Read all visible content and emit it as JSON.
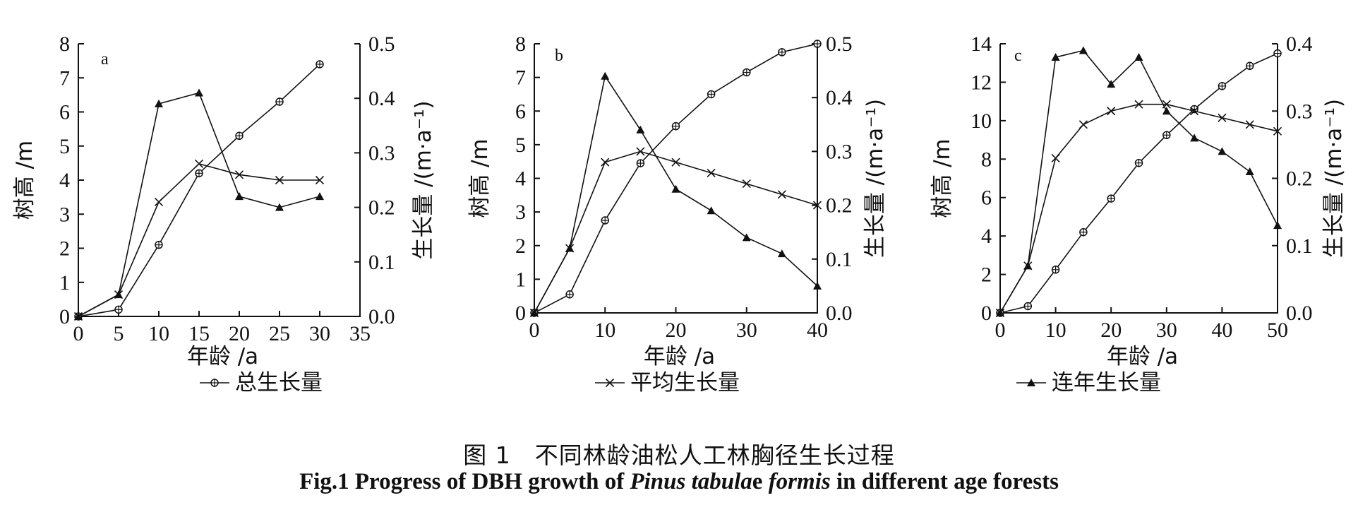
{
  "caption": {
    "cn": "图 1　不同林龄油松人工林胸径生长过程",
    "en_prefix": "Fig.1   Progress of DBH growth of ",
    "en_species_a": "Pinus tabula",
    "en_species_b": "e",
    "en_species_c": " formis",
    "en_suffix": " in different age forests"
  },
  "colors": {
    "ink": "#111111",
    "background": "#ffffff"
  },
  "chart_data": [
    {
      "type": "line",
      "panel_label": "a",
      "xlabel": "年龄 /a",
      "ylabel_left": "树高 /m",
      "ylabel_right": "生长量 /(m·a⁻¹)",
      "xlim": [
        0,
        35
      ],
      "ylim_left": [
        0,
        8
      ],
      "ylim_right": [
        0,
        0.5
      ],
      "xticks": [
        0,
        5,
        10,
        15,
        20,
        25,
        30,
        35
      ],
      "yticks_left": [
        0,
        1,
        2,
        3,
        4,
        5,
        6,
        7,
        8
      ],
      "yticks_right": [
        "0.0",
        "0.1",
        "0.2",
        "0.3",
        "0.4",
        "0.5"
      ],
      "legend": {
        "text": "总生长量",
        "marker": "circle-plus"
      },
      "grid": false,
      "series": [
        {
          "name": "总生长量",
          "marker": "circle-plus",
          "axis": "left",
          "x": [
            0,
            5,
            10,
            15,
            20,
            25,
            30
          ],
          "y": [
            0,
            0.2,
            2.1,
            4.2,
            5.3,
            6.3,
            7.4
          ]
        },
        {
          "name": "平均生长量",
          "marker": "x",
          "axis": "right",
          "x": [
            0,
            5,
            10,
            15,
            20,
            25,
            30
          ],
          "y": [
            0,
            0.04,
            0.21,
            0.28,
            0.26,
            0.25,
            0.25
          ]
        },
        {
          "name": "连年生长量",
          "marker": "triangle",
          "axis": "right",
          "x": [
            0,
            5,
            10,
            15,
            20,
            25,
            30
          ],
          "y": [
            0,
            0.04,
            0.39,
            0.41,
            0.22,
            0.2,
            0.22
          ]
        }
      ]
    },
    {
      "type": "line",
      "panel_label": "b",
      "xlabel": "年龄 /a",
      "ylabel_left": "树高 /m",
      "ylabel_right": "生长量 /(m·a⁻¹)",
      "xlim": [
        0,
        40
      ],
      "ylim_left": [
        0,
        8
      ],
      "ylim_right": [
        0,
        0.5
      ],
      "xticks": [
        0,
        10,
        20,
        30,
        40
      ],
      "yticks_left": [
        0,
        1,
        2,
        3,
        4,
        5,
        6,
        7,
        8
      ],
      "yticks_right": [
        "0.0",
        "0.1",
        "0.2",
        "0.3",
        "0.4",
        "0.5"
      ],
      "legend": {
        "text": "平均生长量",
        "marker": "x"
      },
      "grid": false,
      "series": [
        {
          "name": "总生长量",
          "marker": "circle-plus",
          "axis": "left",
          "x": [
            0,
            5,
            10,
            15,
            20,
            25,
            30,
            35,
            40
          ],
          "y": [
            0,
            0.55,
            2.75,
            4.45,
            5.55,
            6.5,
            7.15,
            7.75,
            8.0
          ]
        },
        {
          "name": "平均生长量",
          "marker": "x",
          "axis": "right",
          "x": [
            0,
            5,
            10,
            15,
            20,
            25,
            30,
            35,
            40
          ],
          "y": [
            0,
            0.12,
            0.28,
            0.3,
            0.28,
            0.26,
            0.24,
            0.22,
            0.2
          ]
        },
        {
          "name": "连年生长量",
          "marker": "triangle",
          "axis": "right",
          "x": [
            0,
            5,
            10,
            15,
            20,
            25,
            30,
            35,
            40
          ],
          "y": [
            0,
            0.12,
            0.44,
            0.34,
            0.23,
            0.19,
            0.14,
            0.11,
            0.05
          ]
        }
      ]
    },
    {
      "type": "line",
      "panel_label": "c",
      "xlabel": "年龄 /a",
      "ylabel_left": "树高 /m",
      "ylabel_right": "生长量 /(m·a⁻¹)",
      "xlim": [
        0,
        50
      ],
      "ylim_left": [
        0,
        14
      ],
      "ylim_right": [
        0,
        0.4
      ],
      "xticks": [
        0,
        10,
        20,
        30,
        40,
        50
      ],
      "yticks_left": [
        0,
        2,
        4,
        6,
        8,
        10,
        12,
        14
      ],
      "yticks_right": [
        "0.0",
        "0.1",
        "0.2",
        "0.3",
        "0.4"
      ],
      "legend": {
        "text": "连年生长量",
        "marker": "triangle"
      },
      "grid": false,
      "series": [
        {
          "name": "总生长量",
          "marker": "circle-plus",
          "axis": "left",
          "x": [
            0,
            5,
            10,
            15,
            20,
            25,
            30,
            35,
            40,
            45,
            50
          ],
          "y": [
            0,
            0.35,
            2.25,
            4.2,
            5.95,
            7.8,
            9.25,
            10.6,
            11.8,
            12.85,
            13.5
          ]
        },
        {
          "name": "平均生长量",
          "marker": "x",
          "axis": "right",
          "x": [
            0,
            5,
            10,
            15,
            20,
            25,
            30,
            35,
            40,
            45,
            50
          ],
          "y": [
            0,
            0.07,
            0.23,
            0.28,
            0.3,
            0.31,
            0.31,
            0.3,
            0.29,
            0.28,
            0.27
          ]
        },
        {
          "name": "连年生长量",
          "marker": "triangle",
          "axis": "right",
          "x": [
            0,
            5,
            10,
            15,
            20,
            25,
            30,
            35,
            40,
            45,
            50
          ],
          "y": [
            0,
            0.07,
            0.38,
            0.39,
            0.34,
            0.38,
            0.3,
            0.26,
            0.24,
            0.21,
            0.13
          ]
        }
      ]
    }
  ]
}
